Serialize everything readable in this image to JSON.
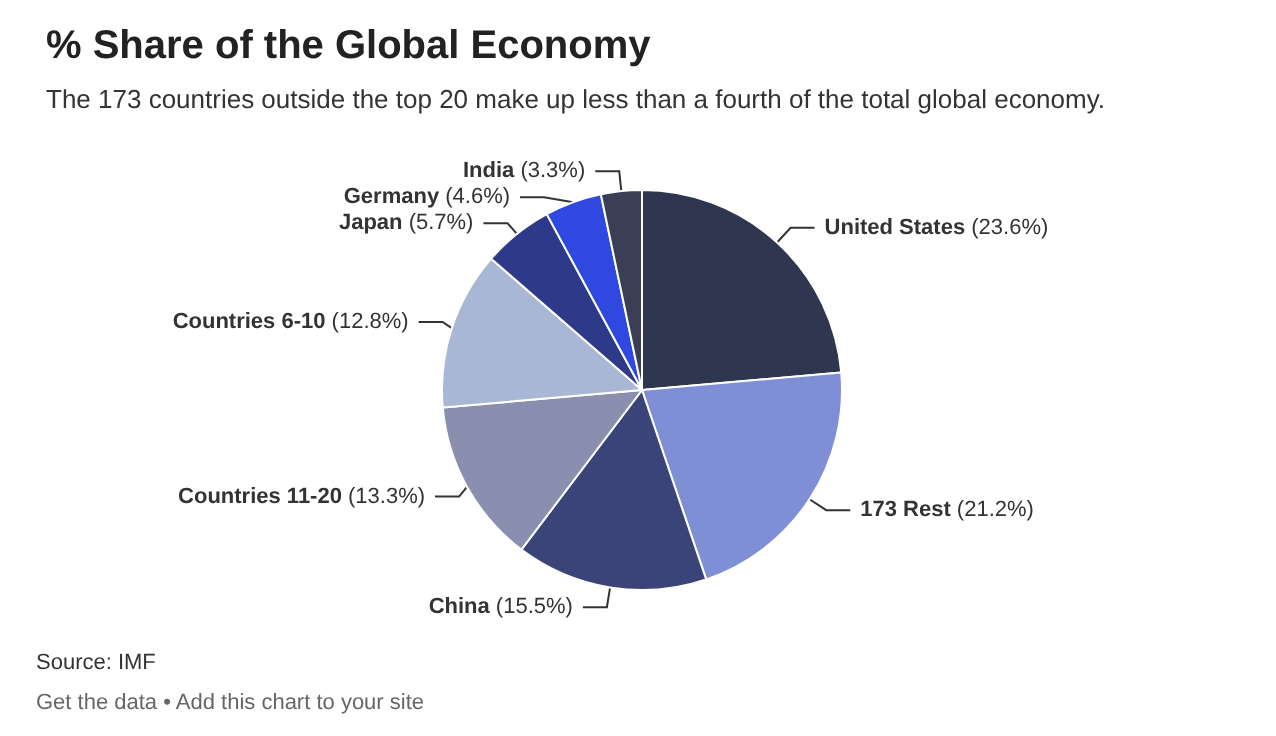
{
  "chart_data": {
    "type": "pie",
    "title": "% Share of the Global Economy",
    "subtitle": "The 173 countries outside the top 20 make up less than a fourth of the total global economy.",
    "categories": [
      "United States",
      "173 Rest",
      "China",
      "Countries 11-20",
      "Countries 6-10",
      "Japan",
      "Germany",
      "India"
    ],
    "values": [
      23.6,
      21.2,
      15.5,
      13.3,
      12.8,
      5.7,
      4.6,
      3.3
    ],
    "value_labels": [
      "(23.6%)",
      "(21.2%)",
      "(15.5%)",
      "(13.3%)",
      "(12.8%)",
      "(5.7%)",
      "(4.6%)",
      "(3.3%)"
    ],
    "colors": [
      "#2e3650",
      "#7f8fd6",
      "#3a4478",
      "#8a8fb0",
      "#a9b7d6",
      "#2d3a8a",
      "#2f48e0",
      "#3a3f55"
    ],
    "annotations": [
      "Source: IMF",
      "Get the data • Add this chart to your site"
    ],
    "legend": false
  }
}
